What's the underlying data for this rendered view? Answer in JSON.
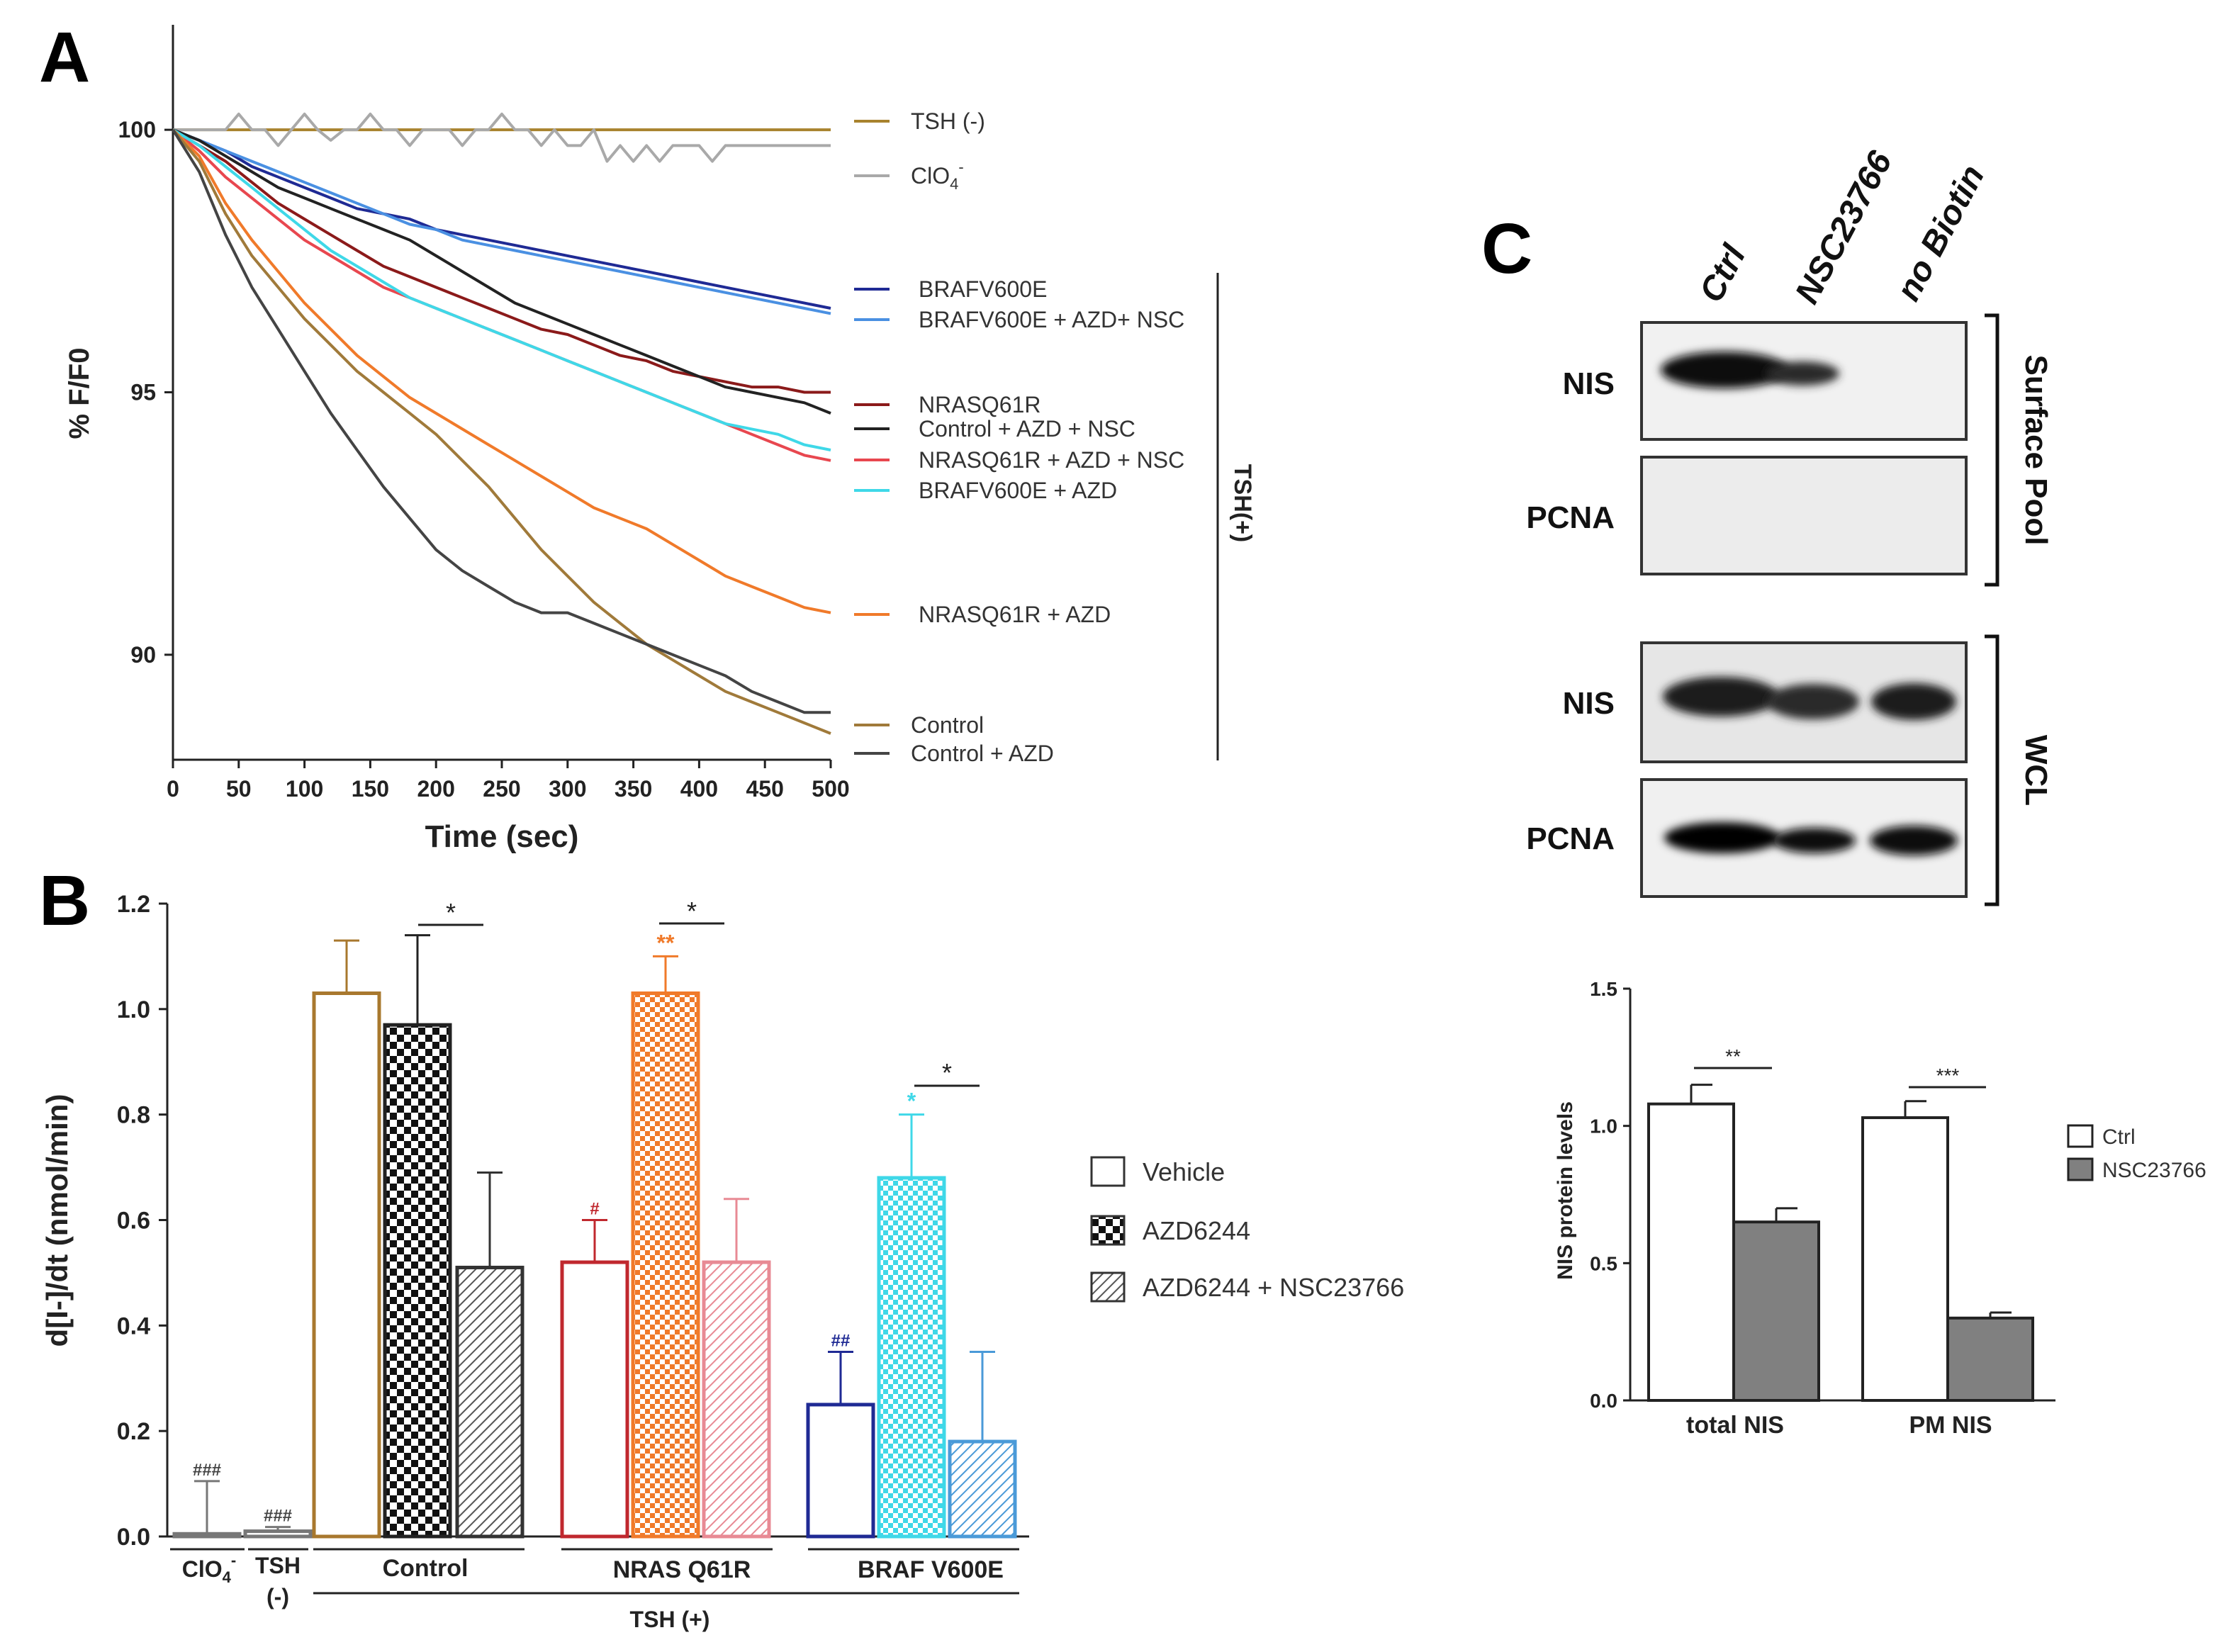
{
  "panel_labels": {
    "a": "A",
    "b": "B",
    "c": "C"
  },
  "chart_data": [
    {
      "panel": "A",
      "type": "line",
      "xlabel": "Time (sec)",
      "ylabel": "% F/F0",
      "xlim": [
        0,
        500
      ],
      "ylim": [
        88,
        102
      ],
      "xticks": [
        0,
        50,
        100,
        150,
        200,
        250,
        300,
        350,
        400,
        450,
        500
      ],
      "yticks": [
        90,
        95,
        100
      ],
      "bracket_label": "TSH(+)",
      "series": [
        {
          "name": "TSH (-)",
          "color": "#a8832e",
          "x": [
            0,
            100,
            200,
            300,
            400,
            500
          ],
          "y": [
            100,
            100,
            100,
            100,
            100,
            100
          ]
        },
        {
          "name": "ClO4-",
          "name_base": "ClO",
          "name_sub": "4",
          "name_sup": "-",
          "color": "#a9a9a9",
          "x": [
            0,
            40,
            50,
            60,
            70,
            80,
            90,
            100,
            110,
            120,
            130,
            140,
            150,
            160,
            170,
            180,
            190,
            200,
            210,
            220,
            230,
            240,
            250,
            260,
            270,
            280,
            290,
            300,
            310,
            320,
            330,
            340,
            350,
            360,
            370,
            380,
            390,
            400,
            410,
            420,
            430,
            440,
            450,
            460,
            470,
            480,
            490,
            500
          ],
          "y": [
            100,
            100,
            100.3,
            100,
            100,
            99.7,
            100,
            100.3,
            100,
            99.8,
            100,
            100,
            100.3,
            100,
            100,
            99.7,
            100,
            100,
            100,
            99.7,
            100,
            100,
            100.3,
            100,
            100,
            99.7,
            100,
            99.7,
            99.7,
            100,
            99.4,
            99.7,
            99.4,
            99.7,
            99.4,
            99.7,
            99.7,
            99.7,
            99.4,
            99.7,
            99.7,
            99.7,
            99.7,
            99.7,
            99.7,
            99.7,
            99.7,
            99.7
          ]
        },
        {
          "name": "BRAFV600E",
          "color": "#1f2a94",
          "x": [
            0,
            20,
            40,
            60,
            80,
            100,
            120,
            140,
            160,
            180,
            200,
            220,
            240,
            260,
            280,
            300,
            320,
            340,
            360,
            380,
            400,
            420,
            440,
            460,
            480,
            500
          ],
          "y": [
            100,
            99.8,
            99.6,
            99.3,
            99.1,
            98.9,
            98.7,
            98.5,
            98.4,
            98.3,
            98.1,
            98,
            97.9,
            97.8,
            97.7,
            97.6,
            97.5,
            97.4,
            97.3,
            97.2,
            97.1,
            97,
            96.9,
            96.8,
            96.7,
            96.6
          ]
        },
        {
          "name": "BRAFV600E + AZD+ NSC",
          "color": "#4a90e2",
          "x": [
            0,
            20,
            40,
            60,
            80,
            100,
            120,
            140,
            160,
            180,
            200,
            220,
            240,
            260,
            280,
            300,
            320,
            340,
            360,
            380,
            400,
            420,
            440,
            460,
            480,
            500
          ],
          "y": [
            100,
            99.8,
            99.6,
            99.4,
            99.2,
            99,
            98.8,
            98.6,
            98.4,
            98.2,
            98.1,
            97.9,
            97.8,
            97.7,
            97.6,
            97.5,
            97.4,
            97.3,
            97.2,
            97.1,
            97,
            96.9,
            96.8,
            96.7,
            96.6,
            96.5
          ]
        },
        {
          "name": "NRASQ61R",
          "color": "#8b1a1a",
          "x": [
            0,
            20,
            40,
            60,
            80,
            100,
            120,
            140,
            160,
            180,
            200,
            220,
            240,
            260,
            280,
            300,
            320,
            340,
            360,
            380,
            400,
            420,
            440,
            460,
            480,
            500
          ],
          "y": [
            100,
            99.7,
            99.4,
            99,
            98.6,
            98.3,
            98,
            97.7,
            97.4,
            97.2,
            97,
            96.8,
            96.6,
            96.4,
            96.2,
            96.1,
            95.9,
            95.7,
            95.6,
            95.4,
            95.3,
            95.2,
            95.1,
            95.1,
            95,
            95
          ]
        },
        {
          "name": "Control + AZD + NSC",
          "color": "#222222",
          "x": [
            0,
            20,
            40,
            60,
            80,
            100,
            120,
            140,
            160,
            180,
            200,
            220,
            240,
            260,
            280,
            300,
            320,
            340,
            360,
            380,
            400,
            420,
            440,
            460,
            480,
            500
          ],
          "y": [
            100,
            99.8,
            99.5,
            99.2,
            98.9,
            98.7,
            98.5,
            98.3,
            98.1,
            97.9,
            97.6,
            97.3,
            97,
            96.7,
            96.5,
            96.3,
            96.1,
            95.9,
            95.7,
            95.5,
            95.3,
            95.1,
            95,
            94.9,
            94.8,
            94.6
          ]
        },
        {
          "name": "NRASQ61R + AZD + NSC",
          "color": "#e8474f",
          "x": [
            0,
            20,
            40,
            60,
            80,
            100,
            120,
            140,
            160,
            180,
            200,
            220,
            240,
            260,
            280,
            300,
            320,
            340,
            360,
            380,
            400,
            420,
            440,
            460,
            480,
            500
          ],
          "y": [
            100,
            99.6,
            99.1,
            98.7,
            98.3,
            97.9,
            97.6,
            97.3,
            97,
            96.8,
            96.6,
            96.4,
            96.2,
            96,
            95.8,
            95.6,
            95.4,
            95.2,
            95,
            94.8,
            94.6,
            94.4,
            94.2,
            94,
            93.8,
            93.7
          ]
        },
        {
          "name": "BRAFV600E + AZD",
          "color": "#3fd8e8",
          "x": [
            0,
            20,
            40,
            60,
            80,
            100,
            120,
            140,
            160,
            180,
            200,
            220,
            240,
            260,
            280,
            300,
            320,
            340,
            360,
            380,
            400,
            420,
            440,
            460,
            480,
            500
          ],
          "y": [
            100,
            99.7,
            99.3,
            98.9,
            98.5,
            98.1,
            97.7,
            97.4,
            97.1,
            96.8,
            96.6,
            96.4,
            96.2,
            96,
            95.8,
            95.6,
            95.4,
            95.2,
            95,
            94.8,
            94.6,
            94.4,
            94.3,
            94.2,
            94,
            93.9
          ]
        },
        {
          "name": "NRASQ61R + AZD",
          "color": "#f07a2a",
          "x": [
            0,
            20,
            40,
            60,
            80,
            100,
            120,
            140,
            160,
            180,
            200,
            220,
            240,
            260,
            280,
            300,
            320,
            340,
            360,
            380,
            400,
            420,
            440,
            460,
            480,
            500
          ],
          "y": [
            100,
            99.5,
            98.6,
            97.9,
            97.3,
            96.7,
            96.2,
            95.7,
            95.3,
            94.9,
            94.6,
            94.3,
            94,
            93.7,
            93.4,
            93.1,
            92.8,
            92.6,
            92.4,
            92.1,
            91.8,
            91.5,
            91.3,
            91.1,
            90.9,
            90.8
          ]
        },
        {
          "name": "Control",
          "color": "#a07a3a",
          "x": [
            0,
            20,
            40,
            60,
            80,
            100,
            120,
            140,
            160,
            180,
            200,
            220,
            240,
            260,
            280,
            300,
            320,
            340,
            360,
            380,
            400,
            420,
            440,
            460,
            480,
            500
          ],
          "y": [
            100,
            99.4,
            98.4,
            97.6,
            97,
            96.4,
            95.9,
            95.4,
            95,
            94.6,
            94.2,
            93.7,
            93.2,
            92.6,
            92,
            91.5,
            91,
            90.6,
            90.2,
            89.9,
            89.6,
            89.3,
            89.1,
            88.9,
            88.7,
            88.5
          ]
        },
        {
          "name": "Control + AZD",
          "color": "#444444",
          "x": [
            0,
            20,
            40,
            60,
            80,
            100,
            120,
            140,
            160,
            180,
            200,
            220,
            240,
            260,
            280,
            300,
            320,
            340,
            360,
            380,
            400,
            420,
            440,
            460,
            480,
            500
          ],
          "y": [
            100,
            99.2,
            98,
            97,
            96.2,
            95.4,
            94.6,
            93.9,
            93.2,
            92.6,
            92,
            91.6,
            91.3,
            91,
            90.8,
            90.8,
            90.6,
            90.4,
            90.2,
            90,
            89.8,
            89.6,
            89.3,
            89.1,
            88.9,
            88.9
          ]
        }
      ]
    },
    {
      "panel": "B",
      "type": "bar",
      "ylabel": "d[I-]/dt (nmol/min)",
      "ylim": [
        0,
        1.2
      ],
      "yticks": [
        0.0,
        0.2,
        0.4,
        0.6,
        0.8,
        1.0,
        1.2
      ],
      "ytick_labels": [
        "0.0",
        "0.2",
        "0.4",
        "0.6",
        "0.8",
        "1.0",
        "1.2"
      ],
      "bars": [
        {
          "group": "ClO4-",
          "treatment": "Vehicle",
          "value": 0.005,
          "error": 0.1,
          "edge": "#777777",
          "fill": "none",
          "annot": "###"
        },
        {
          "group": "TSH (-)",
          "treatment": "Vehicle",
          "value": 0.01,
          "error": 0.008,
          "edge": "#777777",
          "fill": "none",
          "annot": "###"
        },
        {
          "group": "Control",
          "treatment": "Vehicle",
          "value": 1.03,
          "error": 0.1,
          "edge": "#a8782e",
          "fill": "none",
          "annot": ""
        },
        {
          "group": "Control",
          "treatment": "AZD6244",
          "value": 0.97,
          "error": 0.17,
          "edge": "#222222",
          "fill": "check",
          "annot": ""
        },
        {
          "group": "Control",
          "treatment": "AZD6244 + NSC23766",
          "value": 0.51,
          "error": 0.18,
          "edge": "#333333",
          "fill": "hatch",
          "annot": ""
        },
        {
          "group": "NRAS Q61R",
          "treatment": "Vehicle",
          "value": 0.52,
          "error": 0.08,
          "edge": "#c0282e",
          "fill": "none",
          "annot": "#"
        },
        {
          "group": "NRAS Q61R",
          "treatment": "AZD6244",
          "value": 1.03,
          "error": 0.07,
          "edge": "#f07a2a",
          "fill": "check",
          "annot": "**"
        },
        {
          "group": "NRAS Q61R",
          "treatment": "AZD6244 + NSC23766",
          "value": 0.52,
          "error": 0.12,
          "edge": "#e88a94",
          "fill": "hatch",
          "annot": ""
        },
        {
          "group": "BRAF V600E",
          "treatment": "Vehicle",
          "value": 0.25,
          "error": 0.1,
          "edge": "#1f2a94",
          "fill": "none",
          "annot": "##"
        },
        {
          "group": "BRAF V600E",
          "treatment": "AZD6244",
          "value": 0.68,
          "error": 0.12,
          "edge": "#3fd8e8",
          "fill": "check",
          "annot": "*"
        },
        {
          "group": "BRAF V600E",
          "treatment": "AZD6244 + NSC23766",
          "value": 0.18,
          "error": 0.17,
          "edge": "#4a9ad8",
          "fill": "hatch",
          "annot": ""
        }
      ],
      "group_labels": [
        "Control",
        "NRAS Q61R",
        "BRAF V600E"
      ],
      "clo4_label": {
        "base": "ClO",
        "sub": "4",
        "sup": "-"
      },
      "tsh_neg_label": [
        "TSH",
        "(-)"
      ],
      "tsh_pos_label": "TSH (+)",
      "sig_star": "*",
      "legend": [
        "Vehicle",
        "AZD6244",
        "AZD6244 + NSC23766"
      ]
    },
    {
      "panel": "C",
      "type": "bar",
      "ylabel": "NIS protein levels",
      "ylim": [
        0,
        1.5
      ],
      "yticks": [
        0.0,
        0.5,
        1.0,
        1.5
      ],
      "ytick_labels": [
        "0.0",
        "0.5",
        "1.0",
        "1.5"
      ],
      "categories": [
        "total NIS",
        "PM NIS"
      ],
      "series": [
        {
          "name": "Ctrl",
          "color": "#ffffff",
          "values": [
            1.08,
            1.03
          ],
          "errors": [
            0.07,
            0.06
          ]
        },
        {
          "name": "NSC23766",
          "color": "#808080",
          "values": [
            0.65,
            0.3
          ],
          "errors": [
            0.05,
            0.02
          ]
        }
      ],
      "significance": [
        "**",
        "***"
      ]
    }
  ],
  "blot": {
    "lanes": [
      "Ctrl",
      "NSC23766",
      "no Biotin"
    ],
    "rows": [
      "NIS",
      "PCNA",
      "NIS",
      "PCNA"
    ],
    "groups": [
      "Surface Pool",
      "WCL"
    ]
  }
}
